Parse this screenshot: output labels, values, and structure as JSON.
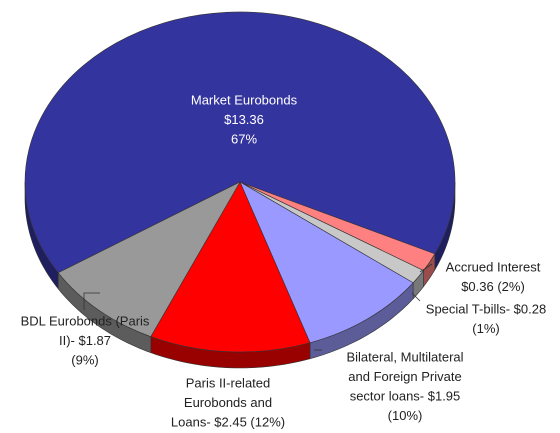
{
  "chart_data": {
    "type": "pie",
    "values": [
      13.36,
      0.36,
      0.28,
      1.95,
      2.45,
      1.87
    ],
    "labels": [
      [
        "Market Eurobonds",
        "$13.36",
        "67%"
      ],
      [
        "Accrued Interest",
        "$0.36 (2%)"
      ],
      [
        "Special T-bills- $0.28",
        "(1%)"
      ],
      [
        "Bilateral, Multilateral",
        "and Foreign Private",
        "sector loans- $1.95",
        "(10%)"
      ],
      [
        "Paris II-related",
        "Eurobonds and",
        "Loans- $2.45 (12%)"
      ],
      [
        "BDL Eurobonds (Paris",
        "II)- $1.87",
        "(9%)"
      ]
    ],
    "colors": [
      "#34349e",
      "#ff8080",
      "#c8c8c8",
      "#9999ff",
      "#ff0000",
      "#999999"
    ]
  }
}
